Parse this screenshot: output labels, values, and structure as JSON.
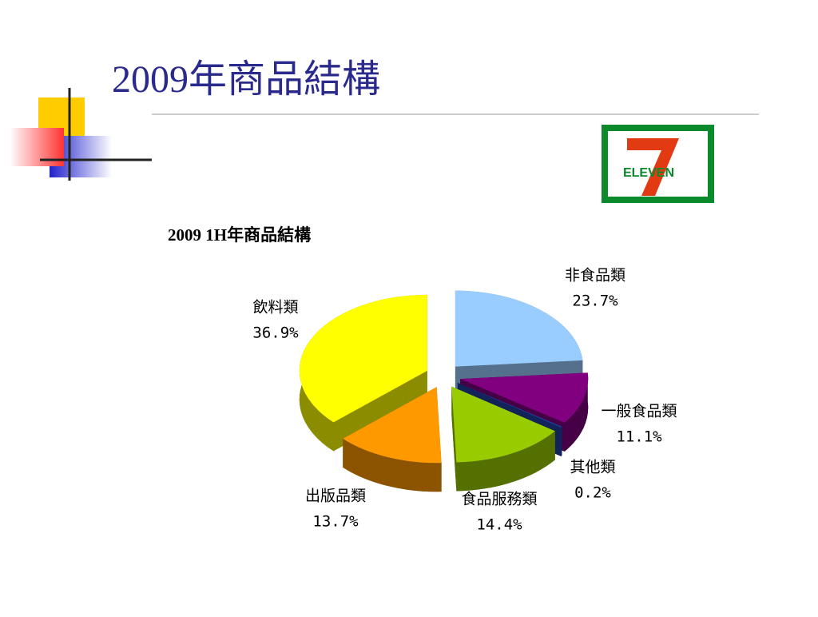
{
  "slide_title": "2009年商品結構",
  "logo_text": "ELEVEN",
  "chart_data": {
    "type": "pie",
    "title": "2009 1H年商品結構",
    "categories": [
      "非食品類",
      "一般食品類",
      "其他類",
      "食品服務類",
      "出版品類",
      "飲料類"
    ],
    "values": [
      23.7,
      11.1,
      0.2,
      14.4,
      13.7,
      36.9
    ],
    "value_labels": [
      "23.7%",
      "11.1%",
      "0.2%",
      "14.4%",
      "13.7%",
      "36.9%"
    ],
    "colors": [
      "#99ccff",
      "#800080",
      "#1f3fa0",
      "#99cc00",
      "#ff9900",
      "#ffff00"
    ]
  }
}
